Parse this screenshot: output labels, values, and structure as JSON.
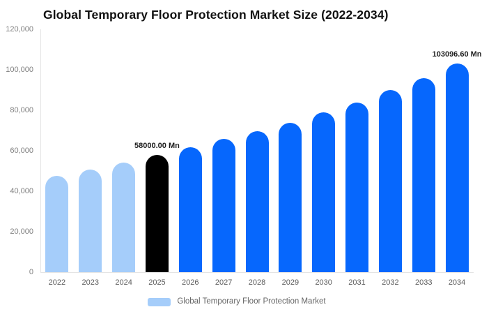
{
  "title": "Global Temporary Floor Protection Market Size (2022-2034)",
  "chart_data": {
    "type": "bar",
    "title": "Global Temporary Floor Protection Market Size (2022-2034)",
    "categories": [
      "2022",
      "2023",
      "2024",
      "2025",
      "2026",
      "2027",
      "2028",
      "2029",
      "2030",
      "2031",
      "2032",
      "2033",
      "2034"
    ],
    "values": [
      47500,
      50700,
      54100,
      58000,
      61700,
      65900,
      69800,
      73900,
      79000,
      83900,
      90000,
      95900,
      103096.6
    ],
    "unit": "Mn",
    "series_name": "Global Temporary Floor Protection Market",
    "ylim": [
      0,
      120000
    ],
    "yticks": [
      0,
      20000,
      40000,
      60000,
      80000,
      100000,
      120000
    ],
    "ytick_labels": [
      "0",
      "20,000",
      "40,000",
      "60,000",
      "80,000",
      "100,000",
      "120,000"
    ],
    "grid": false,
    "legend_position": "bottom",
    "bar_colors": [
      "#a5cdfa",
      "#a5cdfa",
      "#a5cdfa",
      "#000000",
      "#0667fd",
      "#0667fd",
      "#0667fd",
      "#0667fd",
      "#0667fd",
      "#0667fd",
      "#0667fd",
      "#0667fd",
      "#0667fd"
    ],
    "data_labels": [
      {
        "category": "2025",
        "text": "58000.00 Mn"
      },
      {
        "category": "2034",
        "text": "103096.60 Mn"
      }
    ]
  },
  "legend": {
    "label": "Global Temporary Floor Protection Market",
    "swatch_color": "#a5cdfa"
  },
  "colors": {
    "historical_bar": "#a5cdfa",
    "highlight_bar": "#000000",
    "forecast_bar": "#0667fd",
    "axis_line": "#e4e4e4",
    "ytick_text": "#808080",
    "xtick_text": "#595959",
    "title_text": "#111111",
    "data_label_text": "#1d1d1d",
    "legend_text": "#666666"
  }
}
